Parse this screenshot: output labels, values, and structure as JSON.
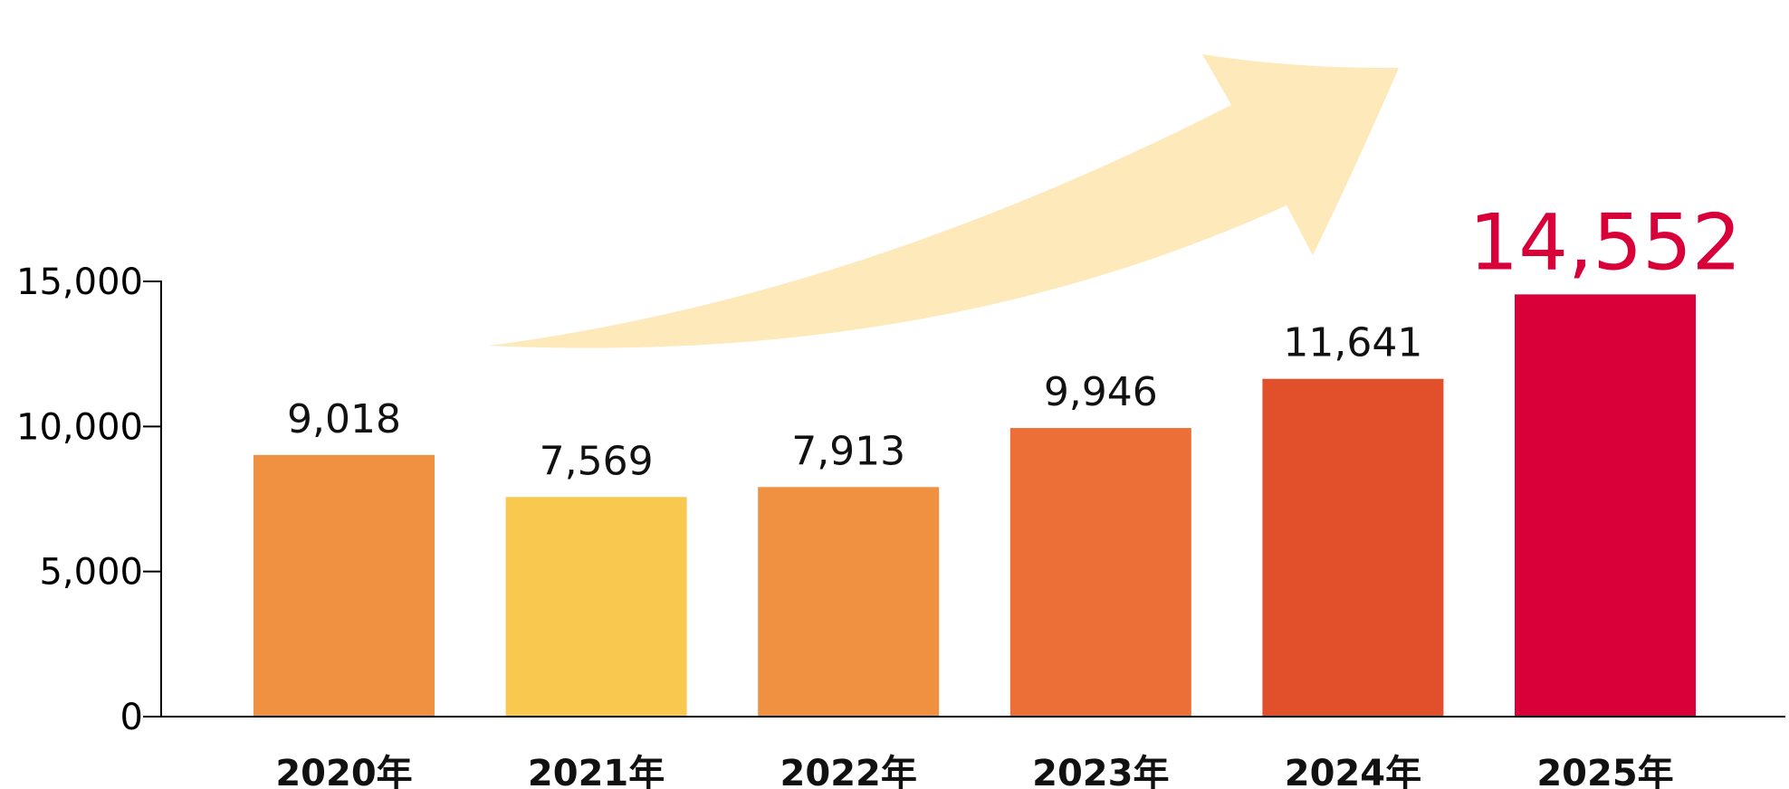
{
  "chart_data": {
    "type": "bar",
    "categories": [
      "2020年",
      "2021年",
      "2022年",
      "2023年",
      "2024年",
      "2025年"
    ],
    "values": [
      9018,
      7569,
      7913,
      9946,
      11641,
      14552
    ],
    "data_labels": [
      "9,018",
      "7,569",
      "7,913",
      "9,946",
      "11,641",
      "14,552"
    ],
    "y_ticks": [
      0,
      5000,
      10000,
      15000
    ],
    "y_tick_labels": [
      "0",
      "5,000",
      "10,000",
      "15,000"
    ],
    "ylim": [
      0,
      15000
    ],
    "grid": false,
    "legend": "none",
    "title": "",
    "xlabel": "",
    "ylabel": "",
    "bar_colors": [
      "#f09142",
      "#f9c84f",
      "#f09142",
      "#eb6f37",
      "#e2502b",
      "#d9003a"
    ],
    "highlight_index": 5,
    "highlight_color": "#d9003a",
    "annotation": {
      "type": "growth-arrow",
      "color": "#fde9ba"
    }
  }
}
